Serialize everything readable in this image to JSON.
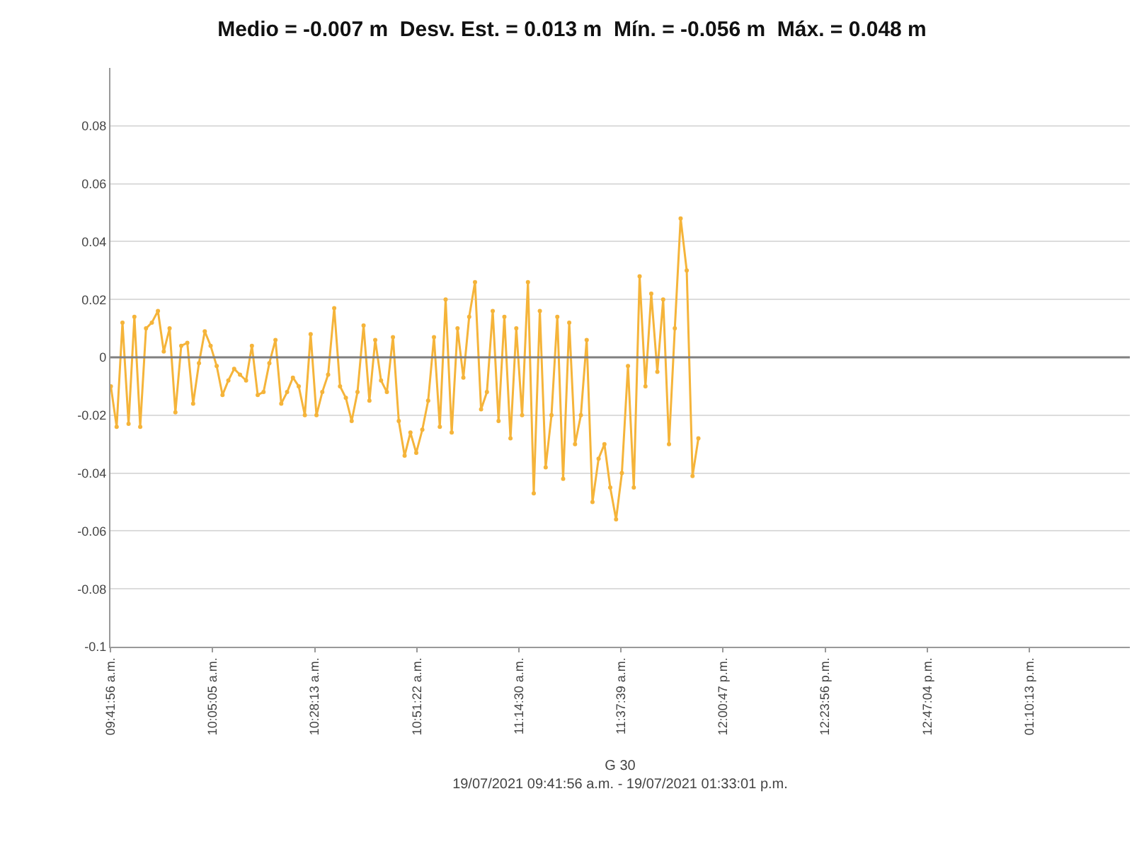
{
  "chart_data": {
    "type": "line",
    "title": "Medio = -0.007 m  Desv. Est. = 0.013 m  Mín. = -0.056 m  Máx. = 0.048 m",
    "xlabel": "G 30\n19/07/2021 09:41:56 a.m. - 19/07/2021 01:33:01 p.m.",
    "xlim": [
      9.6985,
      13.5503
    ],
    "xticks": [
      {
        "value": 9.69889,
        "label": "09:41:56 a.m."
      },
      {
        "value": 10.08472,
        "label": "10:05:05 a.m."
      },
      {
        "value": 10.47028,
        "label": "10:28:13 a.m."
      },
      {
        "value": 10.85611,
        "label": "10:51:22 a.m."
      },
      {
        "value": 11.24167,
        "label": "11:14:30 a.m."
      },
      {
        "value": 11.6275,
        "label": "11:37:39 a.m."
      },
      {
        "value": 12.01306,
        "label": "12:00:47 p.m."
      },
      {
        "value": 12.39889,
        "label": "12:23:56 p.m."
      },
      {
        "value": 12.78444,
        "label": "12:47:04 p.m."
      },
      {
        "value": 13.17028,
        "label": "01:10:13 p.m."
      }
    ],
    "ylim": [
      -0.1,
      0.1
    ],
    "yticks": [
      -0.1,
      -0.08,
      -0.06,
      -0.04,
      -0.02,
      0,
      0.02,
      0.04,
      0.06,
      0.08
    ],
    "grid": "y",
    "marker": "circle",
    "line_style": "solid",
    "ref_lines": [
      {
        "axis": "y",
        "value": 0,
        "color": "#808080"
      }
    ],
    "series": [
      {
        "color": "#f5b43a",
        "x": [
          9.7,
          9.722,
          9.744,
          9.767,
          9.789,
          9.811,
          9.833,
          9.855,
          9.878,
          9.9,
          9.922,
          9.944,
          9.966,
          9.989,
          10.011,
          10.033,
          10.055,
          10.077,
          10.1,
          10.122,
          10.144,
          10.166,
          10.188,
          10.211,
          10.233,
          10.255,
          10.277,
          10.299,
          10.322,
          10.344,
          10.366,
          10.388,
          10.41,
          10.433,
          10.455,
          10.477,
          10.499,
          10.521,
          10.544,
          10.566,
          10.588,
          10.61,
          10.632,
          10.655,
          10.677,
          10.699,
          10.721,
          10.743,
          10.766,
          10.788,
          10.81,
          10.832,
          10.854,
          10.877,
          10.899,
          10.921,
          10.943,
          10.965,
          10.988,
          11.01,
          11.032,
          11.054,
          11.076,
          11.099,
          11.121,
          11.143,
          11.165,
          11.187,
          11.21,
          11.232,
          11.254,
          11.276,
          11.298,
          11.321,
          11.343,
          11.365,
          11.387,
          11.409,
          11.432,
          11.454,
          11.476,
          11.498,
          11.52,
          11.543,
          11.565,
          11.587,
          11.609,
          11.631,
          11.654,
          11.676,
          11.698,
          11.72,
          11.742,
          11.765,
          11.787,
          11.809,
          11.831,
          11.853,
          11.876,
          11.898,
          11.92
        ],
        "values": [
          -0.01,
          -0.024,
          0.012,
          -0.023,
          0.014,
          -0.024,
          0.01,
          0.012,
          0.016,
          0.002,
          0.01,
          -0.019,
          0.004,
          0.005,
          -0.016,
          -0.002,
          0.009,
          0.004,
          -0.003,
          -0.013,
          -0.008,
          -0.004,
          -0.006,
          -0.008,
          0.004,
          -0.013,
          -0.012,
          -0.002,
          0.006,
          -0.016,
          -0.012,
          -0.007,
          -0.01,
          -0.02,
          0.008,
          -0.02,
          -0.012,
          -0.006,
          0.017,
          -0.01,
          -0.014,
          -0.022,
          -0.012,
          0.011,
          -0.015,
          0.006,
          -0.008,
          -0.012,
          0.007,
          -0.022,
          -0.034,
          -0.026,
          -0.033,
          -0.025,
          -0.015,
          0.007,
          -0.024,
          0.02,
          -0.026,
          0.01,
          -0.007,
          0.014,
          0.026,
          -0.018,
          -0.012,
          0.016,
          -0.022,
          0.014,
          -0.028,
          0.01,
          -0.02,
          0.026,
          -0.047,
          0.016,
          -0.038,
          -0.02,
          0.014,
          -0.042,
          0.012,
          -0.03,
          -0.02,
          0.006,
          -0.05,
          -0.035,
          -0.03,
          -0.045,
          -0.056,
          -0.04,
          -0.003,
          -0.045,
          0.028,
          -0.01,
          0.022,
          -0.005,
          0.02,
          -0.03,
          0.01,
          0.048,
          0.03,
          -0.041,
          -0.028
        ]
      }
    ]
  }
}
